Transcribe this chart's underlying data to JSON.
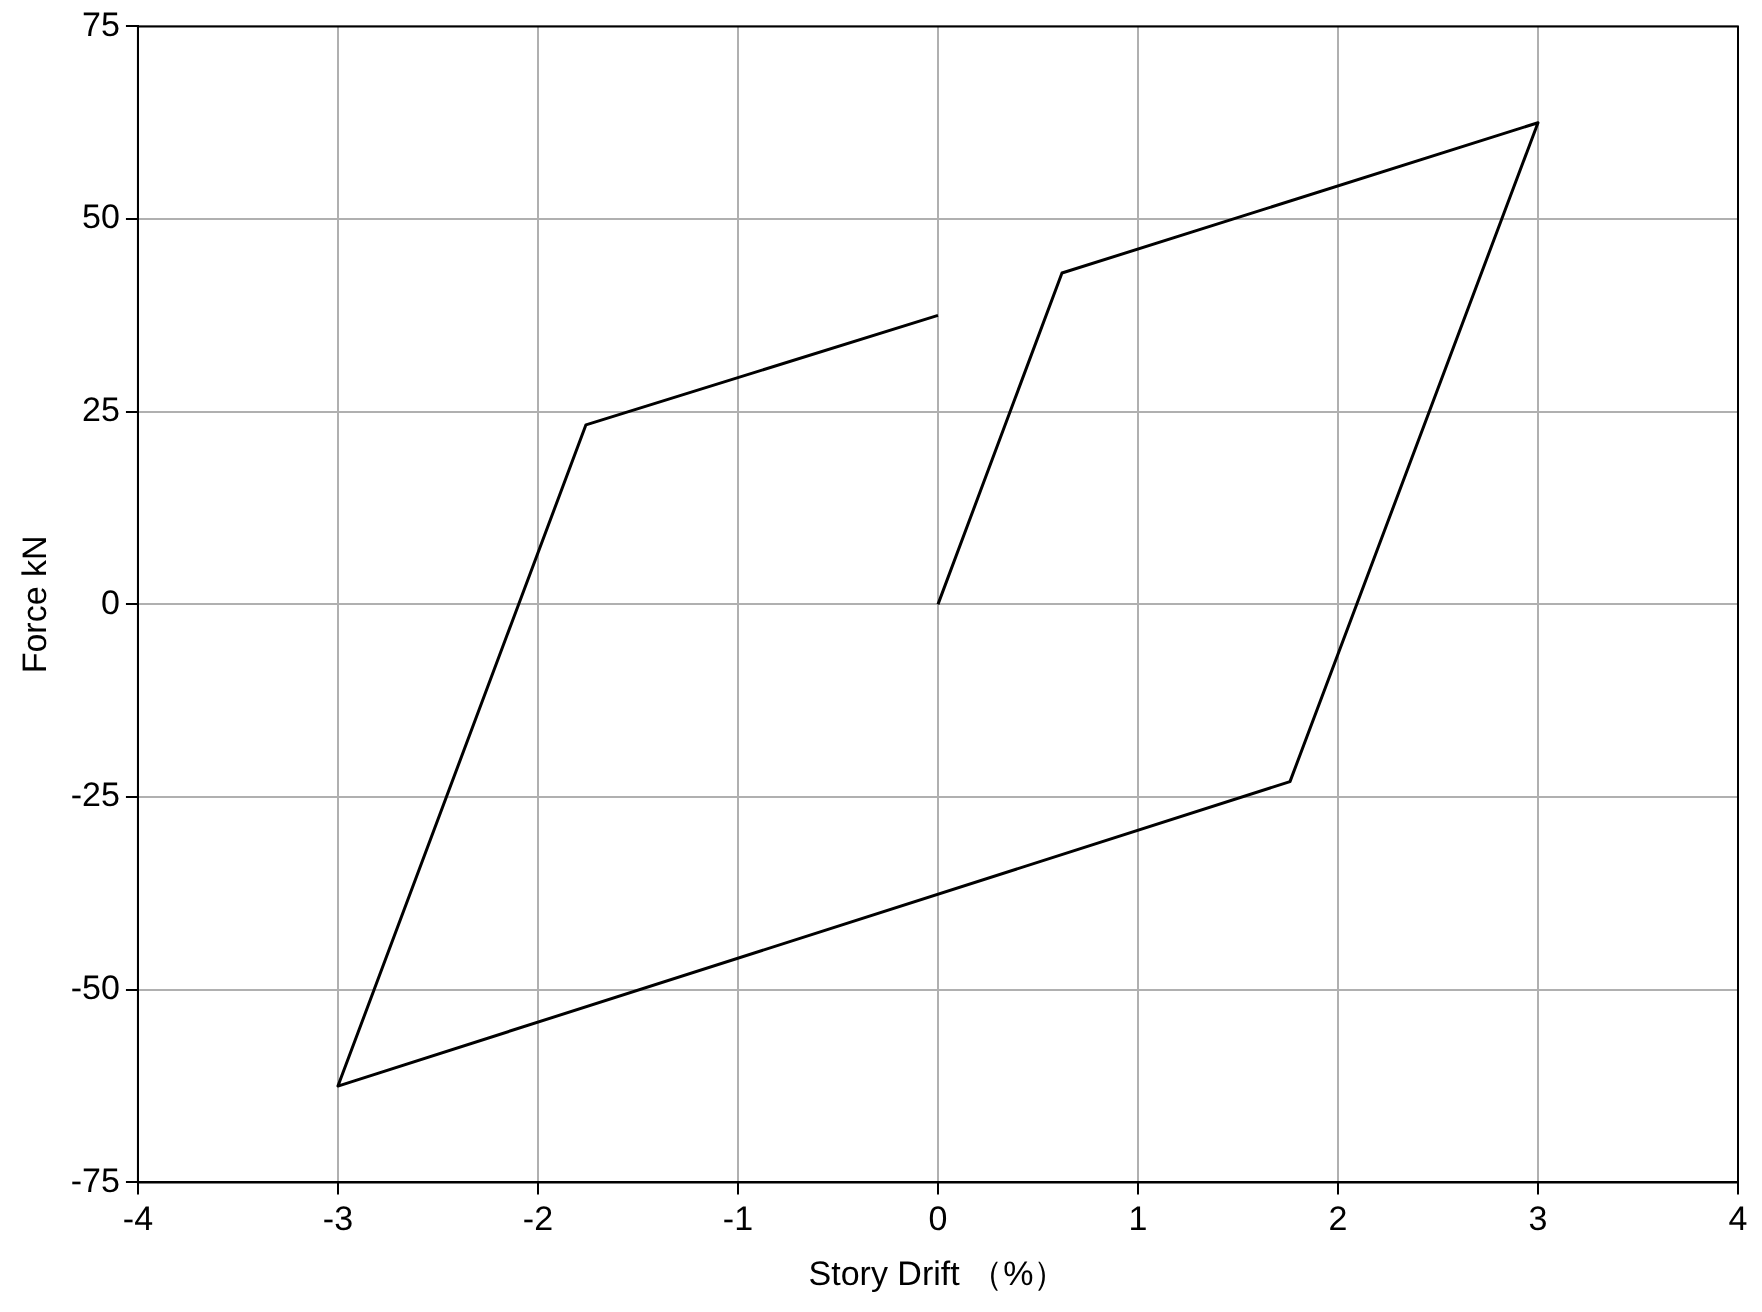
{
  "chart_data": {
    "type": "line",
    "xlabel": "Story Drift （%）",
    "ylabel": "Force kN",
    "series": [
      {
        "x": [
          0,
          0.62,
          3,
          1.76,
          -3,
          -1.76,
          0
        ],
        "values": [
          0,
          43,
          62.5,
          -23,
          -62.5,
          23.3,
          37.5
        ],
        "color": "#000000"
      }
    ],
    "xlim": [
      -4,
      4
    ],
    "xticks": [
      -4,
      -3,
      -2,
      -1,
      0,
      1,
      2,
      3,
      4
    ],
    "ylim": [
      -75,
      75
    ],
    "yticks": [
      -75,
      -50,
      -25,
      0,
      25,
      50,
      75
    ],
    "grid": true,
    "marker": "none",
    "line_style": "solid",
    "legend": false
  }
}
